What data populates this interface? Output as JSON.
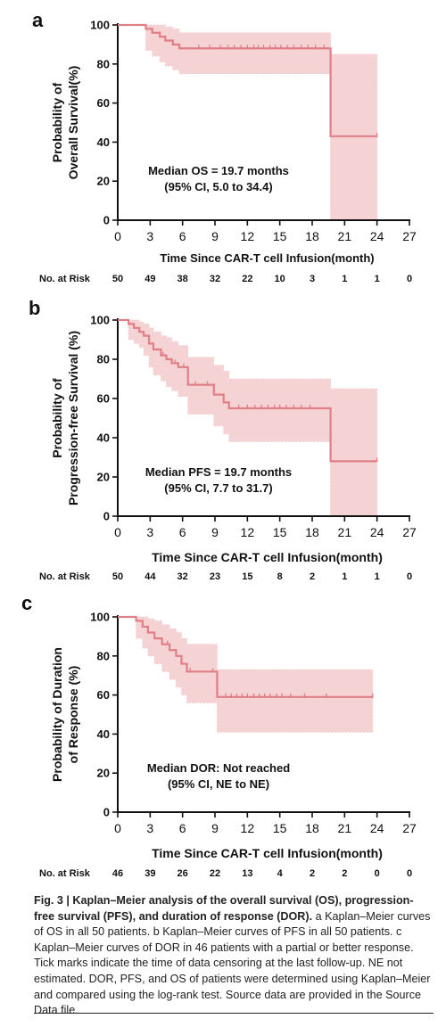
{
  "chart_data": [
    {
      "type": "line",
      "panel_label": "a",
      "ylabel_lines": [
        "Probability of",
        "Overall Survival(%)"
      ],
      "xlabel": "Time Since CAR-T cell Infusion(month)",
      "xlim": [
        0,
        27
      ],
      "ylim": [
        0,
        100
      ],
      "xticks": [
        "0",
        "3",
        "6",
        "9",
        "12",
        "15",
        "18",
        "21",
        "24",
        "27"
      ],
      "yticks": [
        "0",
        "20",
        "40",
        "60",
        "80",
        "100"
      ],
      "annotation_lines": [
        "Median OS = 19.7 months",
        "(95% CI, 5.0 to 34.4)"
      ],
      "risk_label": "No. at Risk",
      "risk_values": [
        "50",
        "49",
        "38",
        "32",
        "22",
        "10",
        "3",
        "1",
        "1",
        "0"
      ],
      "color": "#e07f85",
      "ci_color": "#f5d3d5",
      "series": [
        {
          "x": [
            0,
            2.6,
            2.6,
            3.2,
            3.2,
            3.9,
            3.9,
            4.4,
            4.4,
            5.1,
            5.1,
            5.7,
            5.7,
            19.7,
            19.7,
            24.0
          ],
          "y": [
            100,
            100,
            98,
            98,
            96,
            96,
            94,
            94,
            92,
            92,
            90,
            90,
            88,
            88,
            43,
            43
          ],
          "ci_upper": [
            100,
            100,
            100,
            100,
            100,
            100,
            100,
            100,
            99,
            99,
            98,
            98,
            96,
            96,
            85,
            85
          ],
          "ci_lower": [
            100,
            100,
            87,
            87,
            84,
            84,
            81,
            81,
            79,
            79,
            77,
            77,
            75,
            75,
            0,
            0
          ],
          "censor_x": [
            7.5,
            8.5,
            9.5,
            10.2,
            10.8,
            11.4,
            12.0,
            12.6,
            13.0,
            13.5,
            14.1,
            14.6,
            15.1,
            15.7,
            16.3,
            17.0,
            17.6,
            18.3,
            19.1,
            24.0
          ]
        }
      ]
    },
    {
      "type": "line",
      "panel_label": "b",
      "ylabel_lines": [
        "Probability of",
        "Progression-free Survival (%)"
      ],
      "xlabel": "Time Since CAR-T cell  Infusion(month)",
      "xlim": [
        0,
        27
      ],
      "ylim": [
        0,
        100
      ],
      "xticks": [
        "0",
        "3",
        "6",
        "9",
        "12",
        "15",
        "18",
        "21",
        "24",
        "27"
      ],
      "yticks": [
        "0",
        "20",
        "40",
        "60",
        "80",
        "100"
      ],
      "annotation_lines": [
        "Median PFS = 19.7 months",
        "(95% CI, 7.7 to 31.7)"
      ],
      "risk_label": "No. at Risk",
      "risk_values": [
        "50",
        "44",
        "32",
        "23",
        "15",
        "8",
        "2",
        "1",
        "1",
        "0"
      ],
      "color": "#e07f85",
      "ci_color": "#f5d3d5",
      "series": [
        {
          "x": [
            0,
            1.0,
            1.0,
            1.5,
            1.5,
            2.0,
            2.0,
            2.4,
            2.4,
            2.9,
            2.9,
            3.3,
            3.3,
            4.0,
            4.0,
            4.5,
            4.5,
            5.0,
            5.0,
            5.6,
            5.6,
            6.5,
            6.5,
            8.9,
            8.9,
            9.8,
            9.8,
            10.3,
            10.3,
            19.7,
            19.7,
            24.0
          ],
          "y": [
            100,
            100,
            98,
            98,
            96,
            96,
            94,
            94,
            92,
            92,
            88,
            88,
            85,
            85,
            82,
            82,
            80,
            80,
            78,
            78,
            76,
            76,
            67,
            67,
            62,
            62,
            58,
            58,
            55,
            55,
            28,
            28
          ],
          "ci_upper": [
            100,
            100,
            100,
            100,
            100,
            100,
            99,
            99,
            98,
            98,
            96,
            96,
            94,
            94,
            92,
            92,
            91,
            91,
            89,
            89,
            87,
            87,
            81,
            81,
            77,
            77,
            74,
            74,
            70,
            70,
            65,
            65
          ],
          "ci_lower": [
            100,
            100,
            90,
            90,
            88,
            88,
            86,
            86,
            82,
            82,
            76,
            76,
            72,
            72,
            69,
            69,
            66,
            66,
            64,
            64,
            61,
            61,
            52,
            52,
            46,
            46,
            42,
            42,
            38,
            38,
            0,
            0
          ],
          "censor_x": [
            4.2,
            5.3,
            6.1,
            7.2,
            8.3,
            11.2,
            12.0,
            12.7,
            13.3,
            13.9,
            14.5,
            15.0,
            15.6,
            16.3,
            17.0,
            17.8,
            24.0
          ]
        }
      ]
    },
    {
      "type": "line",
      "panel_label": "c",
      "ylabel_lines": [
        "Probability of Duration",
        "of Response (%)"
      ],
      "xlabel": "Time Since CAR-T cell  Infusion(month)",
      "xlim": [
        0,
        27
      ],
      "ylim": [
        0,
        100
      ],
      "xticks": [
        "0",
        "3",
        "6",
        "9",
        "12",
        "15",
        "18",
        "21",
        "24",
        "27"
      ],
      "yticks": [
        "0",
        "20",
        "40",
        "60",
        "80",
        "100"
      ],
      "annotation_lines": [
        "Median DOR: Not reached",
        "(95% CI, NE to NE)"
      ],
      "risk_label": "No. at Risk",
      "risk_values": [
        "46",
        "39",
        "26",
        "22",
        "13",
        "4",
        "2",
        "2",
        "0",
        "0"
      ],
      "color": "#e07f85",
      "ci_color": "#f5d3d5",
      "series": [
        {
          "x": [
            0,
            1.7,
            1.7,
            2.3,
            2.3,
            2.8,
            2.8,
            3.4,
            3.4,
            4.1,
            4.1,
            4.8,
            4.8,
            5.4,
            5.4,
            5.9,
            5.9,
            6.4,
            6.4,
            9.2,
            9.2,
            23.6
          ],
          "y": [
            100,
            100,
            98,
            98,
            95,
            95,
            92,
            92,
            89,
            89,
            86,
            86,
            83,
            83,
            80,
            80,
            76,
            76,
            72,
            72,
            59,
            59
          ],
          "ci_upper": [
            100,
            100,
            100,
            100,
            100,
            100,
            99,
            99,
            98,
            98,
            96,
            96,
            94,
            94,
            92,
            92,
            89,
            89,
            86,
            86,
            73,
            73
          ],
          "ci_lower": [
            100,
            100,
            89,
            89,
            84,
            84,
            80,
            80,
            76,
            76,
            72,
            72,
            68,
            68,
            64,
            64,
            60,
            60,
            56,
            56,
            41,
            41
          ],
          "censor_x": [
            4.6,
            6.7,
            8.8,
            10.0,
            10.5,
            11.0,
            11.5,
            12.0,
            12.6,
            13.1,
            13.6,
            14.1,
            14.7,
            15.2,
            16.0,
            17.3,
            19.3,
            23.6
          ]
        }
      ]
    }
  ],
  "caption": {
    "title": "Fig. 3 | Kaplan–Meier analysis of the overall survival (OS), progression-free survival (PFS), and duration of response (DOR).",
    "body": " a Kaplan–Meier curves of OS in all 50 patients. b Kaplan–Meier curves of PFS in all 50 patients. c Kaplan–Meier curves of DOR in 46 patients with a partial or better response. Tick marks indicate the time of data censoring at the last follow-up. NE not estimated. DOR, PFS, and OS of patients were determined using Kaplan–Meier and compared using the log-rank test. Source data are provided in the Source Data file."
  }
}
